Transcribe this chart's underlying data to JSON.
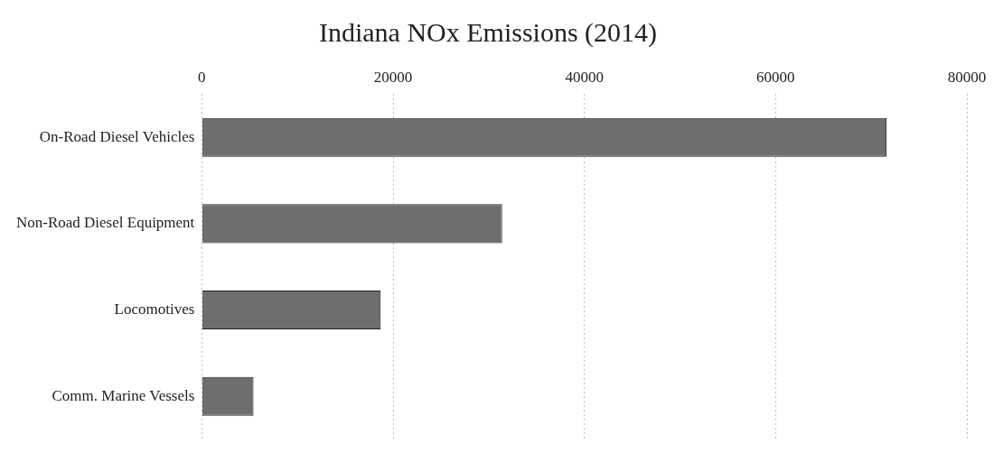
{
  "chart_data": {
    "type": "bar",
    "title": "Indiana NOx Emissions (2014)",
    "orientation": "horizontal",
    "categories": [
      "On-Road Diesel Vehicles",
      "Non-Road Diesel Equipment",
      "Locomotives",
      "Comm. Marine Vessels"
    ],
    "values": [
      71600,
      31400,
      18700,
      5400
    ],
    "color": "#6e6e6e",
    "xlim": [
      0,
      80000
    ],
    "xticks": [
      0,
      20000,
      40000,
      60000,
      80000
    ],
    "grid": "x",
    "legend": false
  }
}
